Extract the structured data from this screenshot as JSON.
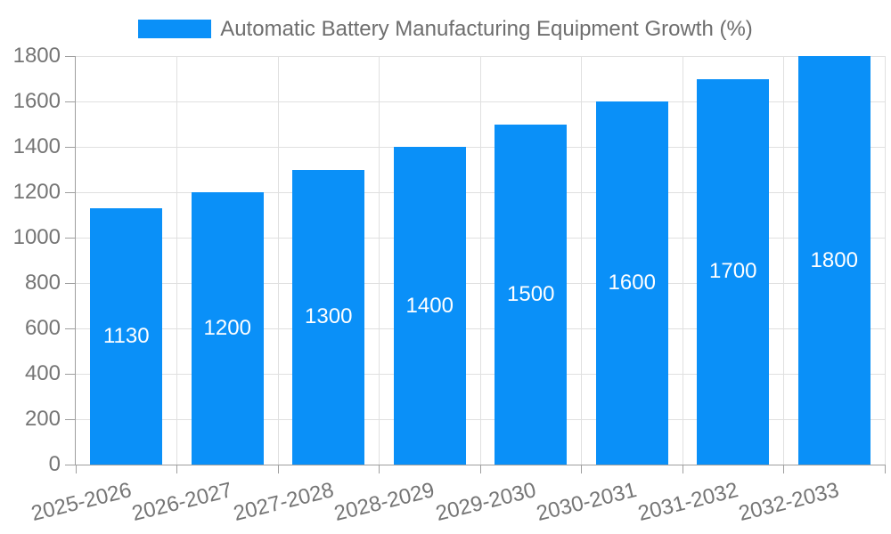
{
  "chart_data": {
    "type": "bar",
    "title": "Automatic Battery Manufacturing Equipment Growth (%)",
    "categories": [
      "2025-2026",
      "2026-2027",
      "2027-2028",
      "2028-2029",
      "2029-2030",
      "2030-2031",
      "2031-2032",
      "2032-2033"
    ],
    "values": [
      1130,
      1200,
      1300,
      1400,
      1500,
      1600,
      1700,
      1800
    ],
    "yticks": [
      0,
      200,
      400,
      600,
      800,
      1000,
      1200,
      1400,
      1600,
      1800
    ],
    "ylim": [
      0,
      1800
    ],
    "xlabel": "",
    "ylabel": "",
    "grid": "both",
    "legend_position": "top-center",
    "x_label_rotation_deg": -14,
    "value_labels": "centered-inside-bars",
    "colors": {
      "bar": "#0a90f8",
      "grid": "#e0e0e0",
      "axis": "#9e9e9e",
      "tick_label": "#757575",
      "title": "#6e6e6e",
      "value_label": "#ffffff",
      "background": "#ffffff"
    }
  }
}
